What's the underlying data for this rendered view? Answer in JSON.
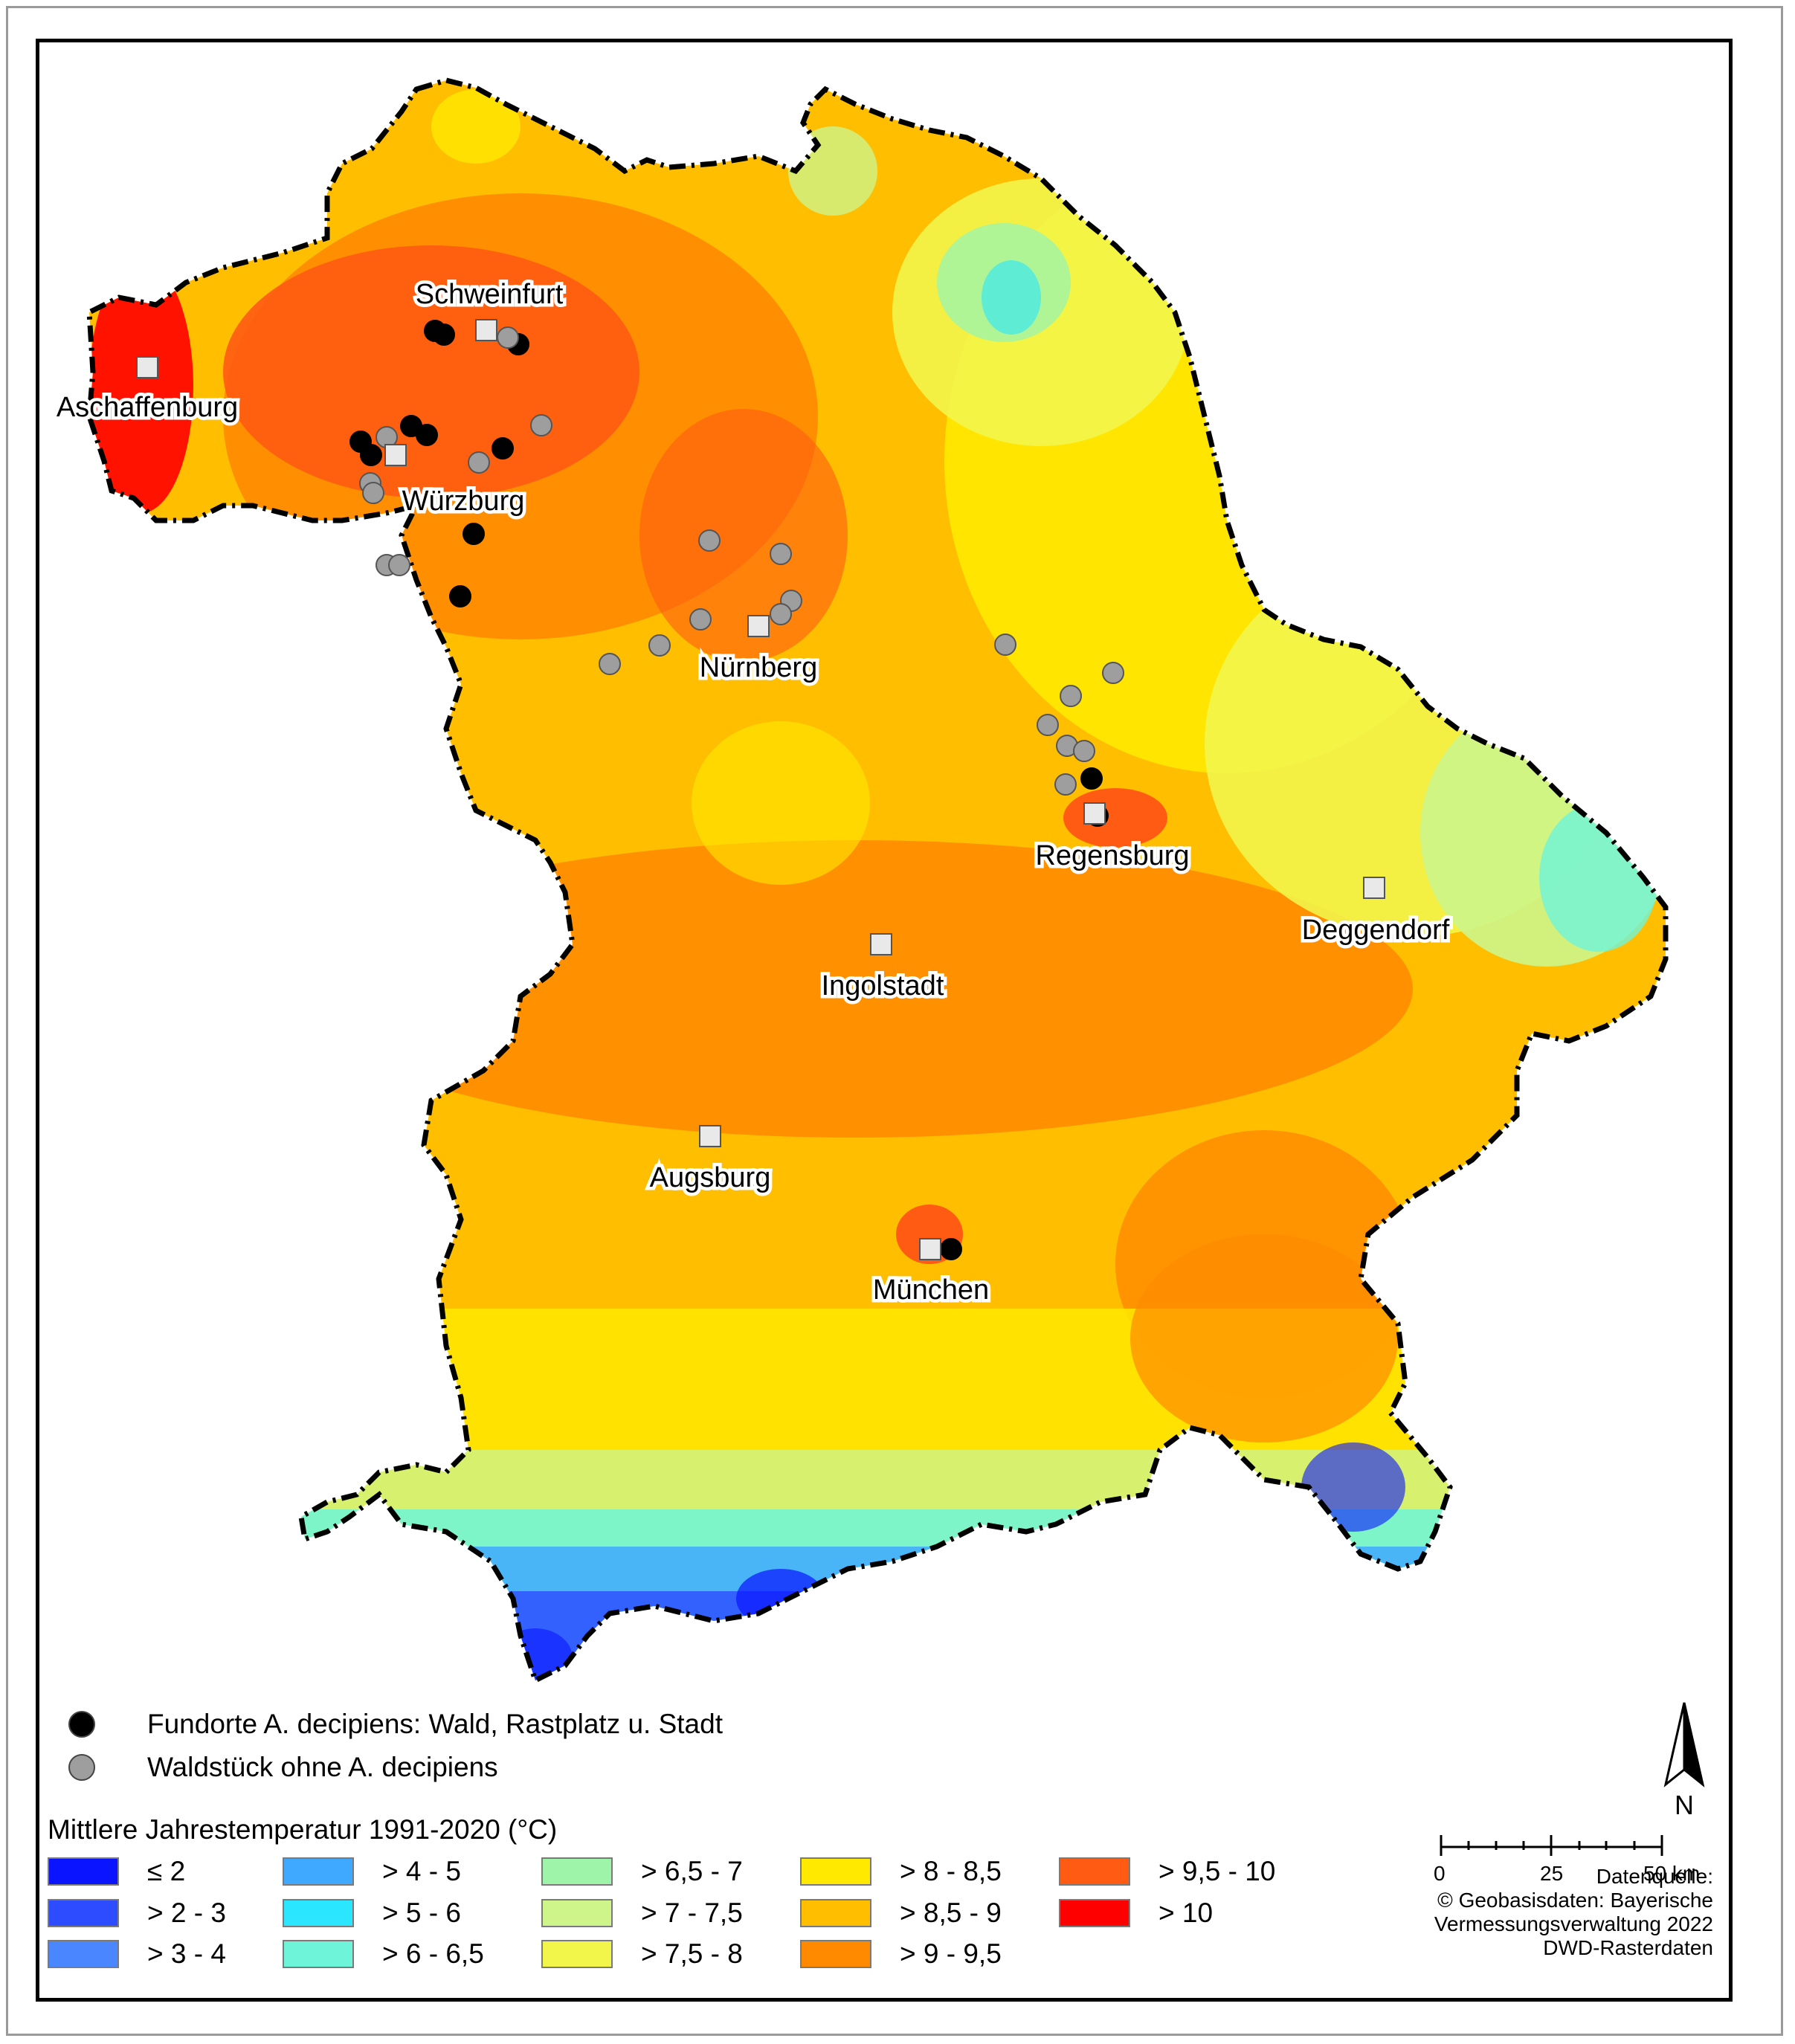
{
  "map": {
    "cities": [
      {
        "name": "Schweinfurt"
      },
      {
        "name": "Aschaffenburg"
      },
      {
        "name": "Würzburg"
      },
      {
        "name": "Nürnberg"
      },
      {
        "name": "Regensburg"
      },
      {
        "name": "Deggendorf"
      },
      {
        "name": "Ingolstadt"
      },
      {
        "name": "Augsburg"
      },
      {
        "name": "München"
      }
    ],
    "colors": {
      "black_point": "#000000",
      "grey_point": "#9e9e9e",
      "city_square": "#e9e9e9"
    }
  },
  "legend": {
    "points": [
      {
        "label": "Fundorte A. decipiens: Wald, Rastplatz u. Stadt",
        "color": "#000000"
      },
      {
        "label": "Waldstück ohne A. decipiens",
        "color": "#9e9e9e"
      }
    ],
    "title": "Mittlere Jahrestemperatur 1991-2020 (°C)",
    "classes": [
      {
        "label": "≤ 2",
        "color": "#0a14ff"
      },
      {
        "label": "> 2 - 3",
        "color": "#2e4cff"
      },
      {
        "label": "> 3 - 4",
        "color": "#4a86ff"
      },
      {
        "label": "> 4 - 5",
        "color": "#3fa9ff"
      },
      {
        "label": "> 5 - 6",
        "color": "#2ae6ff"
      },
      {
        "label": "> 6 - 6,5",
        "color": "#6ef5d9"
      },
      {
        "label": "> 6,5 - 7",
        "color": "#9ef5aa"
      },
      {
        "label": "> 7 - 7,5",
        "color": "#cdf58a"
      },
      {
        "label": "> 7,5 - 8",
        "color": "#f2f54a"
      },
      {
        "label": "> 8 - 8,5",
        "color": "#ffe900"
      },
      {
        "label": "> 8,5 - 9",
        "color": "#ffbe00"
      },
      {
        "label": "> 9 - 9,5",
        "color": "#ff8a00"
      },
      {
        "label": "> 9,5 - 10",
        "color": "#ff5b12"
      },
      {
        "label": "> 10",
        "color": "#ff0000"
      }
    ]
  },
  "north_arrow": {
    "label": "N"
  },
  "scale_bar": {
    "labels": [
      "0",
      "25",
      "50 km"
    ]
  },
  "credits": {
    "line1": "Datenquelle:",
    "line2": "© Geobasisdaten: Bayerische",
    "line3": "Vermessungsverwaltung 2022",
    "line4": "DWD-Rasterdaten"
  }
}
